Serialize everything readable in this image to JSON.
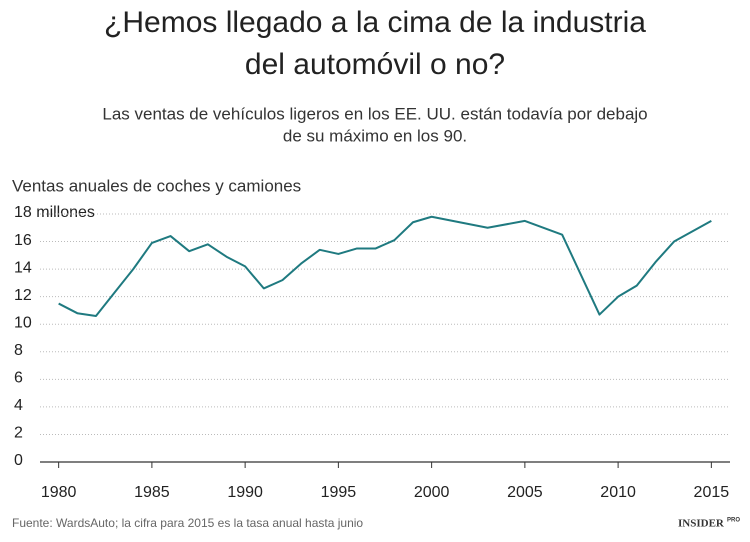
{
  "chart_data": {
    "type": "line",
    "title": [
      "¿Hemos llegado a la cima de la industria",
      "del automóvil o no?"
    ],
    "subtitle": [
      "Las ventas de vehículos ligeros en los EE. UU. están todavía por debajo",
      "de su máximo en los 90."
    ],
    "y_label": "Ventas anuales de coches y camiones",
    "source": "Fuente: WardsAuto; la cifra para 2015 es la tasa anual hasta junio",
    "brand": "INSIDER",
    "brand_suffix": "PRO",
    "x": [
      1980,
      1981,
      1982,
      1983,
      1984,
      1985,
      1986,
      1987,
      1988,
      1989,
      1990,
      1991,
      1992,
      1993,
      1994,
      1995,
      1996,
      1997,
      1998,
      1999,
      2000,
      2003,
      2005,
      2007,
      2009,
      2010,
      2011,
      2012,
      2013,
      2015
    ],
    "series": [
      {
        "name": "Ventas",
        "color": "#1f7a80",
        "values": [
          11.5,
          10.8,
          10.6,
          12.3,
          14.0,
          15.9,
          16.4,
          15.3,
          15.8,
          14.9,
          14.2,
          12.6,
          13.2,
          14.4,
          15.4,
          15.1,
          15.5,
          15.5,
          16.1,
          17.4,
          17.8,
          17.0,
          17.5,
          16.5,
          10.7,
          12.0,
          12.8,
          14.5,
          16.0,
          17.5
        ]
      }
    ],
    "xlim": [
      1979,
      2016
    ],
    "xticks": [
      1980,
      1985,
      1990,
      1995,
      2000,
      2005,
      2010,
      2015
    ],
    "ylim": [
      0,
      18
    ],
    "yticks": [
      0,
      2,
      4,
      6,
      8,
      10,
      12,
      14,
      16,
      {
        "value": 18,
        "label": "18 millones"
      }
    ],
    "grid": true
  }
}
